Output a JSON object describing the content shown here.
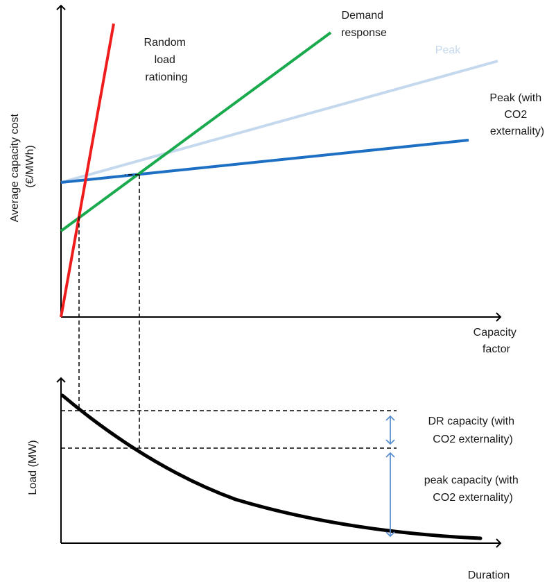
{
  "top_chart": {
    "y_axis_label_line1": "Average capacity  cost",
    "y_axis_label_line2": "(€/MWh)",
    "x_axis_label_line1": "Capacity",
    "x_axis_label_line2": "factor",
    "curves": {
      "random_load_rationing": {
        "line1": "Random",
        "line2": "load",
        "line3": "rationing",
        "color": "#ee1c1c"
      },
      "demand_response": {
        "line1": "Demand",
        "line2": "response",
        "color": "#1aaa4e"
      },
      "peak": {
        "line1": "Peak",
        "color": "#c5d9ee"
      },
      "peak_co2": {
        "line1": "Peak (with",
        "line2": "CO2",
        "line3": "externality)",
        "color": "#1c6fc2"
      }
    }
  },
  "bottom_chart": {
    "y_axis_label": "Load (MW)",
    "x_axis_label": "Duration",
    "dr_capacity": {
      "line1": "DR capacity (with",
      "line2": "CO2 externality)"
    },
    "peak_capacity": {
      "line1": "peak capacity (with",
      "line2": "CO2 externality)"
    },
    "arrow_color": "#5b8fd0",
    "curve_color": "#000000"
  }
}
